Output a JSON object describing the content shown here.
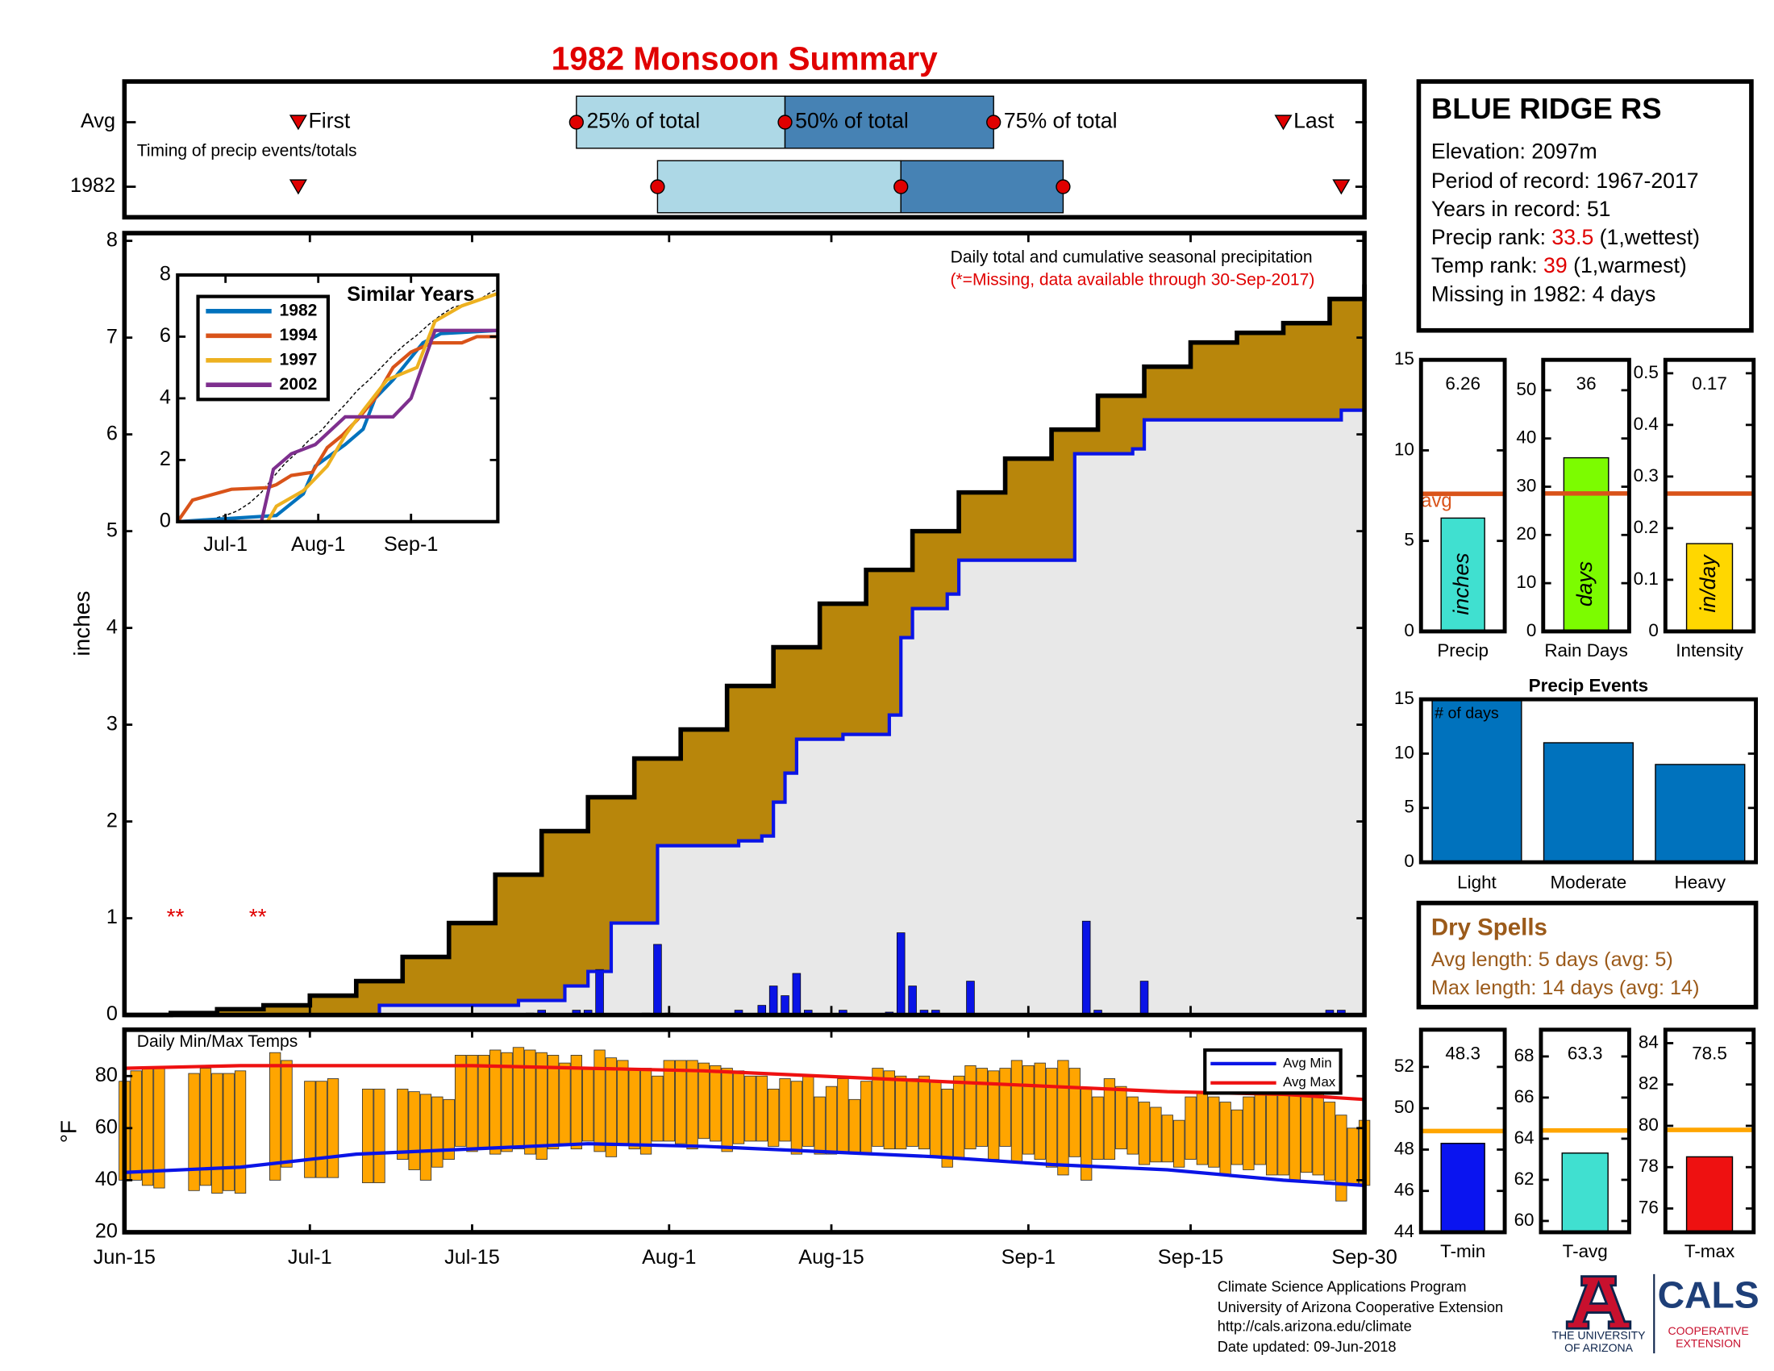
{
  "title": "1982 Monsoon Summary",
  "station": {
    "name": "BLUE RIDGE RS",
    "elevation": "Elevation: 2097m",
    "period": "Period of record: 1967-2017",
    "years": "Years in record: 51",
    "precip_rank": {
      "label": "Precip rank:",
      "value": "33.5",
      "note": "(1,wettest)"
    },
    "temp_rank": {
      "label": "Temp rank:",
      "value": "39",
      "note": "(1,warmest)"
    },
    "missing": "Missing in 1982: 4 days"
  },
  "dry_spells": {
    "title": "Dry Spells",
    "lines": [
      "Avg length: 5 days (avg: 5)",
      "Max length: 14 days (avg: 14)"
    ],
    "color": "#9b5a1a"
  },
  "footer": {
    "lines": [
      "Climate Science Applications Program",
      "University of Arizona Cooperative Extension",
      "http://cals.arizona.edu/climate",
      " Date updated: 09-Jun-2018"
    ],
    "logo": {
      "university": [
        "THE UNIVERSITY",
        "OF ARIZONA"
      ],
      "cals": "CALS",
      "extension": [
        "COOPERATIVE",
        "EXTENSION"
      ]
    }
  },
  "chart_data": [
    {
      "type": "timing",
      "note": "Timing of precip events/totals",
      "xlim": [
        0,
        107
      ],
      "labels": [
        "First",
        "25% of total",
        "50% of total",
        "75% of total",
        "Last"
      ],
      "colors": {
        "low": "#add8e6",
        "high": "#4682b4",
        "marker": "#e00000"
      },
      "series": [
        {
          "name": "Avg",
          "values": [
            15,
            39,
            57,
            75,
            100
          ]
        },
        {
          "name": "1982",
          "values": [
            15,
            46,
            67,
            81,
            105
          ]
        }
      ]
    },
    {
      "type": "step",
      "subtitle": "Daily total and cumulative seasonal precipitation",
      "note": "(*=Missing, data available through 30-Sep-2017)",
      "ylabel": "inches",
      "xlim": [
        0,
        107
      ],
      "ylim": [
        0,
        8.08
      ],
      "yticks": [
        0,
        1,
        2,
        3,
        4,
        5,
        6,
        7,
        8
      ],
      "average": {
        "color": "#b8860b",
        "x": [
          0,
          4,
          8,
          12,
          16,
          20,
          24,
          28,
          32,
          36,
          40,
          44,
          48,
          52,
          56,
          60,
          64,
          68,
          72,
          76,
          80,
          84,
          88,
          92,
          96,
          100,
          104,
          107
        ],
        "values": [
          0,
          0.02,
          0.06,
          0.1,
          0.2,
          0.35,
          0.6,
          0.95,
          1.45,
          1.9,
          2.25,
          2.65,
          2.95,
          3.4,
          3.8,
          4.25,
          4.6,
          5.0,
          5.4,
          5.75,
          6.05,
          6.4,
          6.7,
          6.95,
          7.05,
          7.15,
          7.4,
          7.55
        ]
      },
      "year": {
        "color": "#0a14e6",
        "x": [
          0,
          22,
          34,
          38,
          40,
          42,
          46,
          53,
          55,
          56,
          57,
          58,
          62,
          66,
          67,
          68,
          71,
          72,
          82,
          87,
          88,
          104,
          105,
          107
        ],
        "values": [
          0,
          0.1,
          0.15,
          0.3,
          0.45,
          0.95,
          1.75,
          1.8,
          1.85,
          2.2,
          2.5,
          2.85,
          2.9,
          3.1,
          3.9,
          4.2,
          4.35,
          4.7,
          5.8,
          5.85,
          6.15,
          6.15,
          6.25,
          6.25
        ]
      },
      "daily": {
        "color": "#0a14e6",
        "x": [
          35,
          36,
          39,
          40,
          41,
          45,
          46,
          47,
          53,
          55,
          56,
          57,
          58,
          59,
          62,
          66,
          67,
          68,
          69,
          70,
          73,
          83,
          84,
          88,
          104,
          105
        ],
        "values": [
          0.02,
          0.05,
          0.05,
          0.05,
          0.47,
          0.02,
          0.73,
          0.02,
          0.05,
          0.1,
          0.3,
          0.2,
          0.43,
          0.05,
          0.05,
          0.03,
          0.85,
          0.3,
          0.05,
          0.05,
          0.35,
          0.97,
          0.05,
          0.35,
          0.05,
          0.05
        ]
      },
      "missing": [
        {
          "x": 4.4,
          "y": 1,
          "label": "**"
        },
        {
          "x": 11.5,
          "y": 1,
          "label": "**"
        }
      ]
    },
    {
      "type": "line",
      "title": "Similar Years",
      "xlim": [
        0,
        107
      ],
      "ylim": [
        0,
        8
      ],
      "yticks": [
        0,
        2,
        4,
        6,
        8
      ],
      "xticks": [
        {
          "value": 16,
          "label": "Jul-1"
        },
        {
          "value": 47,
          "label": "Aug-1"
        },
        {
          "value": 78,
          "label": "Sep-1"
        }
      ],
      "series": [
        {
          "name": "1982",
          "color": "#0072bd",
          "x": [
            0,
            33,
            42,
            46,
            56,
            62,
            66,
            72,
            82,
            88,
            107
          ],
          "values": [
            0,
            0.2,
            0.9,
            1.8,
            2.5,
            3.0,
            4.0,
            4.6,
            5.8,
            6.1,
            6.2
          ]
        },
        {
          "name": "1994",
          "color": "#d95319",
          "x": [
            0,
            5,
            18,
            30,
            33,
            38,
            45,
            50,
            55,
            60,
            66,
            72,
            78,
            85,
            95,
            100,
            107
          ],
          "values": [
            0,
            0.7,
            1.05,
            1.1,
            1.2,
            1.5,
            1.6,
            2.4,
            2.8,
            3.3,
            4.0,
            5.0,
            5.5,
            5.8,
            5.8,
            6.0,
            6.0
          ]
        },
        {
          "name": "1997",
          "color": "#edb120",
          "x": [
            0,
            30,
            33,
            42,
            50,
            56,
            62,
            70,
            80,
            86,
            95,
            107
          ],
          "values": [
            0,
            0,
            0.5,
            1.0,
            1.8,
            2.8,
            3.6,
            4.6,
            5.0,
            6.5,
            7.0,
            7.4
          ]
        },
        {
          "name": "2002",
          "color": "#7e2f8e",
          "x": [
            0,
            28,
            32,
            38,
            46,
            56,
            72,
            78,
            86,
            107
          ],
          "values": [
            0,
            0,
            1.7,
            2.2,
            2.5,
            3.4,
            3.4,
            4.0,
            6.2,
            6.2
          ]
        }
      ]
    },
    {
      "type": "bar",
      "category": "Precip",
      "value": 6.26,
      "avg": 7.6,
      "avg_label": "avg",
      "unit": "inches",
      "ylim": [
        0,
        15
      ],
      "yticks": [
        0,
        5,
        10,
        15
      ],
      "color": "#40e0d0",
      "avg_color": "#d95319"
    },
    {
      "type": "bar",
      "category": "Rain Days",
      "value": 36,
      "avg": 28.6,
      "unit": "days",
      "ylim": [
        0,
        56.3
      ],
      "yticks": [
        0,
        10,
        20,
        30,
        40,
        50
      ],
      "color": "#7cfc00",
      "avg_color": "#d95319"
    },
    {
      "type": "bar",
      "category": "Intensity",
      "value": 0.17,
      "avg": 0.267,
      "unit": "in/day",
      "ylim": [
        0,
        0.526
      ],
      "yticks": [
        0,
        0.1,
        0.2,
        0.3,
        0.4,
        0.5
      ],
      "color": "#ffd700",
      "avg_color": "#d95319"
    },
    {
      "type": "column",
      "title": "Precip Events",
      "label": "# of days",
      "categories": [
        "Light",
        "Moderate",
        "Heavy"
      ],
      "values": [
        15,
        11,
        9
      ],
      "ylim": [
        0,
        15
      ],
      "yticks": [
        0,
        5,
        10,
        15
      ],
      "color": "#0072bd"
    },
    {
      "type": "range",
      "title": "Daily Min/Max Temps",
      "ylabel": "°F",
      "xlim": [
        0,
        107
      ],
      "ylim": [
        20,
        97.8
      ],
      "yticks": [
        20,
        40,
        60,
        80
      ],
      "color": "#ffa500",
      "xticks": [
        {
          "value": 0,
          "label": "Jun-15"
        },
        {
          "value": 16,
          "label": "Jul-1"
        },
        {
          "value": 30,
          "label": "Jul-15"
        },
        {
          "value": 47,
          "label": "Aug-1"
        },
        {
          "value": 61,
          "label": "Aug-15"
        },
        {
          "value": 78,
          "label": "Sep-1"
        },
        {
          "value": 92,
          "label": "Sep-15"
        },
        {
          "value": 107,
          "label": "Sep-30"
        }
      ],
      "max": [
        78,
        82,
        83,
        83,
        null,
        null,
        81,
        83,
        81,
        81,
        82,
        null,
        null,
        89,
        86,
        null,
        78,
        78,
        79,
        null,
        null,
        75,
        75,
        null,
        75,
        74,
        73,
        72,
        71,
        88,
        88,
        88,
        90,
        89,
        91,
        90,
        89,
        88,
        85,
        88,
        83,
        90,
        87,
        86,
        83,
        83,
        80,
        86,
        86,
        86,
        85,
        84,
        83,
        82,
        80,
        80,
        75,
        79,
        78,
        80,
        72,
        76,
        79,
        71,
        78,
        83,
        82,
        80,
        79,
        80,
        78,
        75,
        80,
        84,
        83,
        82,
        83,
        86,
        84,
        85,
        83,
        86,
        83,
        75,
        72,
        79,
        76,
        72,
        70,
        68,
        65,
        63,
        72,
        74,
        72,
        70,
        67,
        72,
        75,
        73,
        75,
        75,
        76,
        75,
        70,
        65,
        60,
        63
      ],
      "min": [
        40,
        40,
        38,
        37,
        null,
        null,
        36,
        38,
        35,
        36,
        35,
        null,
        null,
        40,
        45,
        null,
        41,
        41,
        41,
        null,
        null,
        39,
        39,
        null,
        48,
        44,
        40,
        45,
        48,
        53,
        51,
        52,
        50,
        51,
        52,
        50,
        48,
        52,
        54,
        52,
        55,
        51,
        49,
        54,
        52,
        50,
        55,
        55,
        54,
        52,
        56,
        55,
        51,
        54,
        55,
        55,
        53,
        55,
        50,
        53,
        50,
        50,
        51,
        50,
        50,
        53,
        52,
        52,
        53,
        52,
        49,
        45,
        48,
        52,
        53,
        48,
        53,
        47,
        50,
        48,
        45,
        42,
        49,
        40,
        48,
        48,
        52,
        50,
        46,
        47,
        47,
        45,
        48,
        46,
        45,
        42,
        46,
        44,
        46,
        42,
        42,
        40,
        43,
        42,
        40,
        32,
        38,
        38
      ],
      "series": [
        {
          "name": "Avg Min",
          "color": "#0a14e6",
          "x": [
            0,
            10,
            20,
            30,
            40,
            50,
            60,
            70,
            80,
            90,
            100,
            107
          ],
          "values": [
            43,
            45,
            50,
            52,
            54,
            53,
            51,
            49,
            46,
            44,
            40,
            38
          ]
        },
        {
          "name": "Avg Max",
          "color": "#ee1111",
          "x": [
            0,
            10,
            20,
            30,
            40,
            50,
            60,
            70,
            80,
            90,
            100,
            107
          ],
          "values": [
            83,
            84,
            84,
            84,
            83,
            82,
            80,
            78,
            76,
            74,
            73,
            71
          ]
        }
      ]
    },
    {
      "type": "bar",
      "category": "T-min",
      "value": 48.3,
      "avg": 48.9,
      "ylim": [
        44,
        53.8
      ],
      "yticks": [
        44,
        46,
        48,
        50,
        52
      ],
      "color": "#0a14f0",
      "avg_color": "#ffa500"
    },
    {
      "type": "bar",
      "category": "T-avg",
      "value": 63.3,
      "avg": 64.4,
      "ylim": [
        59.45,
        69.3
      ],
      "yticks": [
        60,
        62,
        64,
        66,
        68
      ],
      "color": "#40e0d0",
      "avg_color": "#ffa500"
    },
    {
      "type": "bar",
      "category": "T-max",
      "value": 78.5,
      "avg": 79.8,
      "ylim": [
        74.85,
        84.65
      ],
      "yticks": [
        76,
        78,
        80,
        82,
        84
      ],
      "color": "#ee1111",
      "avg_color": "#ffa500"
    }
  ]
}
